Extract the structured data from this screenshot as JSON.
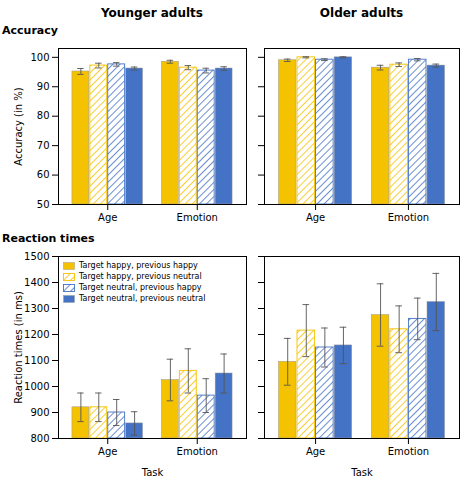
{
  "chart_data": [
    {
      "type": "bar",
      "title": "Younger adults",
      "annotations": [
        "Accuracy"
      ],
      "ylabel": "Accuracy (in %)",
      "categories": [
        "Age",
        "Emotion"
      ],
      "series": [
        {
          "name": "Target happy, previous happy",
          "color": "#F5C200",
          "values": [
            95.2,
            98.5
          ],
          "errors": [
            1.0,
            0.5
          ]
        },
        {
          "name": "Target happy, previous neutral",
          "color": "#F5C200",
          "marker": "hatch",
          "values": [
            97.2,
            96.5
          ],
          "errors": [
            0.8,
            0.7
          ]
        },
        {
          "name": "Target neutral, previous happy",
          "color": "#4472C4",
          "marker": "hatch",
          "values": [
            97.6,
            95.5
          ],
          "errors": [
            0.6,
            0.8
          ]
        },
        {
          "name": "Target neutral, previous neutral",
          "color": "#4472C4",
          "values": [
            96.2,
            96.2
          ],
          "errors": [
            0.5,
            0.6
          ]
        }
      ],
      "ylim": [
        50,
        103
      ],
      "yticks": [
        50,
        60,
        70,
        80,
        90,
        100
      ],
      "grid": false
    },
    {
      "type": "bar",
      "title": "Older adults",
      "categories": [
        "Age",
        "Emotion"
      ],
      "series": [
        {
          "name": "Target happy, previous happy",
          "color": "#F5C200",
          "values": [
            99.0,
            96.5
          ],
          "errors": [
            0.4,
            0.8
          ]
        },
        {
          "name": "Target happy, previous neutral",
          "color": "#F5C200",
          "marker": "hatch",
          "values": [
            100.0,
            97.5
          ],
          "errors": [
            0.2,
            0.6
          ]
        },
        {
          "name": "Target neutral, previous happy",
          "color": "#4472C4",
          "marker": "hatch",
          "values": [
            99.2,
            99.2
          ],
          "errors": [
            0.3,
            0.4
          ]
        },
        {
          "name": "Target neutral, previous neutral",
          "color": "#4472C4",
          "values": [
            100.0,
            97.2
          ],
          "errors": [
            0.2,
            0.5
          ]
        }
      ],
      "ylim": [
        50,
        103
      ],
      "yticks": [
        50,
        60,
        70,
        80,
        90,
        100
      ],
      "grid": false,
      "tick_labels": "x"
    },
    {
      "type": "bar",
      "annotations": [
        "Reaction times"
      ],
      "ylabel": "Reaction times (in ms)",
      "xlabel": "Task",
      "categories": [
        "Age",
        "Emotion"
      ],
      "series": [
        {
          "name": "Target happy, previous happy",
          "color": "#F5C200",
          "values": [
            920,
            1025
          ],
          "errors": [
            55,
            80
          ]
        },
        {
          "name": "Target happy, previous neutral",
          "color": "#F5C200",
          "marker": "hatch",
          "values": [
            920,
            1060
          ],
          "errors": [
            55,
            85
          ]
        },
        {
          "name": "Target neutral, previous happy",
          "color": "#4472C4",
          "marker": "hatch",
          "values": [
            900,
            965
          ],
          "errors": [
            50,
            65
          ]
        },
        {
          "name": "Target neutral, previous neutral",
          "color": "#4472C4",
          "values": [
            858,
            1050
          ],
          "errors": [
            45,
            75
          ]
        }
      ],
      "ylim": [
        800,
        1500
      ],
      "yticks": [
        800,
        900,
        1000,
        1100,
        1200,
        1300,
        1400,
        1500
      ],
      "grid": false,
      "legend": "upper left"
    },
    {
      "type": "bar",
      "xlabel": "Task",
      "categories": [
        "Age",
        "Emotion"
      ],
      "series": [
        {
          "name": "Target happy, previous happy",
          "color": "#F5C200",
          "values": [
            1095,
            1275
          ],
          "errors": [
            90,
            120
          ]
        },
        {
          "name": "Target happy, previous neutral",
          "color": "#F5C200",
          "marker": "hatch",
          "values": [
            1215,
            1220
          ],
          "errors": [
            100,
            90
          ]
        },
        {
          "name": "Target neutral, previous happy",
          "color": "#4472C4",
          "marker": "hatch",
          "values": [
            1150,
            1260
          ],
          "errors": [
            75,
            80
          ]
        },
        {
          "name": "Target neutral, previous neutral",
          "color": "#4472C4",
          "values": [
            1158,
            1325
          ],
          "errors": [
            70,
            110
          ]
        }
      ],
      "ylim": [
        800,
        1500
      ],
      "yticks": [
        800,
        900,
        1000,
        1100,
        1200,
        1300,
        1400,
        1500
      ],
      "grid": false,
      "tick_labels": "x"
    }
  ]
}
